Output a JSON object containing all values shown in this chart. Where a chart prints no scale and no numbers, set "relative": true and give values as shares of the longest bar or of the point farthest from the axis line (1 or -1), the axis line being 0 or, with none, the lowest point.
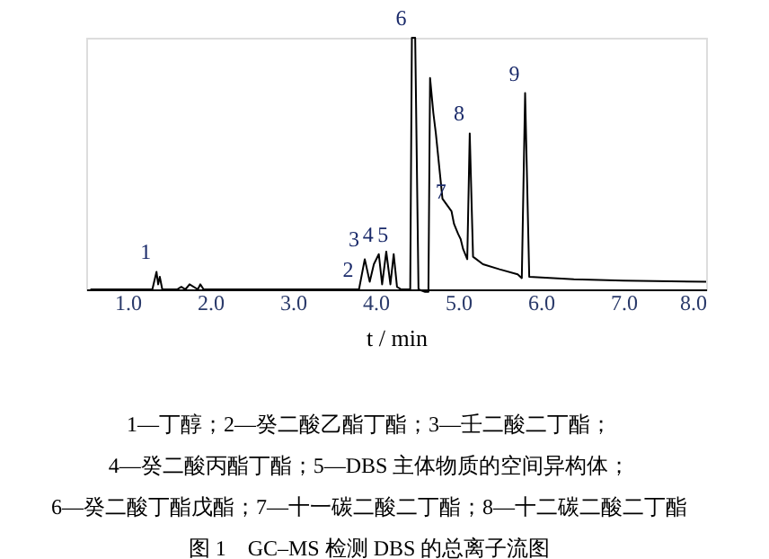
{
  "chart_data": {
    "type": "line",
    "relative": true,
    "title": "图 1　GC–MS 检测 DBS 的总离子流图",
    "xlabel": "t / min",
    "x": [
      0.55,
      1.3,
      1.35,
      1.37,
      1.39,
      1.42,
      1.6,
      1.65,
      1.7,
      1.75,
      1.85,
      1.88,
      1.92,
      3.8,
      3.87,
      3.93,
      3.98,
      4.04,
      4.08,
      4.13,
      4.18,
      4.22,
      4.26,
      4.31,
      4.42,
      4.44,
      4.48,
      4.52,
      4.6,
      4.64,
      4.66,
      4.7,
      4.73,
      4.81,
      4.92,
      4.95,
      5.0,
      5.03,
      5.06,
      5.11,
      5.14,
      5.18,
      5.3,
      5.5,
      5.72,
      5.77,
      5.81,
      5.86,
      6.4,
      7.0,
      8.0
    ],
    "series": [
      {
        "color": "#000000",
        "values": [
          0,
          0,
          0.07,
          0.02,
          0.05,
          0,
          0,
          0.01,
          0,
          0.02,
          0,
          0.02,
          0,
          0,
          0.12,
          0.03,
          0.1,
          0.14,
          0.02,
          0.15,
          0.02,
          0.14,
          0.01,
          0,
          0,
          1.0,
          1.0,
          0,
          -0.01,
          -0.01,
          0.84,
          0.7,
          0.62,
          0.36,
          0.31,
          0.26,
          0.22,
          0.2,
          0.16,
          0.12,
          0.62,
          0.13,
          0.1,
          0.08,
          0.06,
          0.045,
          0.78,
          0.05,
          0.04,
          0.035,
          0.03
        ]
      }
    ],
    "xlim": [
      0.5,
      8.0
    ],
    "xticks": [
      {
        "value": 1,
        "label": "1.0"
      },
      {
        "value": 2,
        "label": "2.0"
      },
      {
        "value": 3,
        "label": "3.0"
      },
      {
        "value": 4,
        "label": "4.0"
      },
      {
        "value": 5,
        "label": "5.0"
      },
      {
        "value": 6,
        "label": "6.0"
      },
      {
        "value": 7,
        "label": "7.0"
      },
      {
        "value": 8,
        "label": "8.0"
      }
    ],
    "tick_labels": "x",
    "grid": false,
    "line_style": "solid",
    "marker": "none",
    "annotations": [
      {
        "text": "1",
        "x": 1.35,
        "y": 0.07
      },
      {
        "text": "2",
        "x": 3.8,
        "y": 0
      },
      {
        "text": "3",
        "x": 3.87,
        "y": 0.12
      },
      {
        "text": "4",
        "x": 4.04,
        "y": 0.14
      },
      {
        "text": "5",
        "x": 4.22,
        "y": 0.14
      },
      {
        "text": "6",
        "x": 4.44,
        "y": 1.0
      },
      {
        "text": "7",
        "x": 4.92,
        "y": 0.31
      },
      {
        "text": "8",
        "x": 5.14,
        "y": 0.62
      },
      {
        "text": "9",
        "x": 5.81,
        "y": 0.78
      },
      "1—丁醇；2—癸二酸乙酯丁酯；3—壬二酸二丁酯；",
      "4—癸二酸丙酯丁酯；5—DBS 主体物质的空间异构体；",
      "6—癸二酸丁酯戊酯；7—十一碳二酸二丁酯；8—十二碳二酸二丁酯"
    ]
  }
}
